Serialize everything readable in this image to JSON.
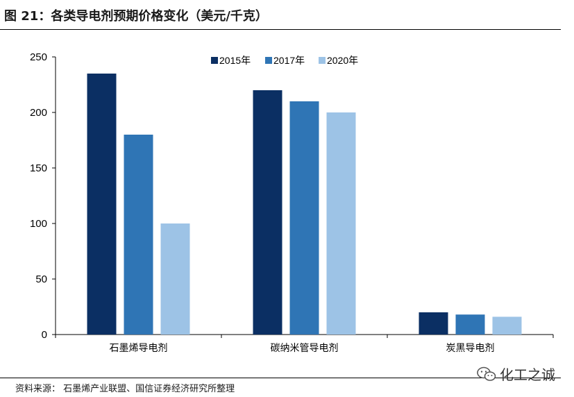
{
  "header": {
    "title": "图 21：各类导电剂预期价格变化（美元/千克）"
  },
  "footer": {
    "source": "资料来源：  石墨烯产业联盟、国信证券经济研究所整理",
    "watermark": "化工之诚"
  },
  "chart_data": {
    "type": "bar",
    "title": "图 21：各类导电剂预期价格变化（美元/千克）",
    "categories": [
      "石墨烯导电剂",
      "碳纳米管导电剂",
      "炭黑导电剂"
    ],
    "series": [
      {
        "name": "2015年",
        "values": [
          235,
          220,
          20
        ],
        "color": "#0b2f63"
      },
      {
        "name": "2017年",
        "values": [
          180,
          210,
          18
        ],
        "color": "#2f75b5"
      },
      {
        "name": "2020年",
        "values": [
          100,
          200,
          16
        ],
        "color": "#9dc3e6"
      }
    ],
    "ylim": [
      0,
      250
    ],
    "yticks": [
      0,
      50,
      100,
      150,
      200,
      250
    ],
    "xlabel": "",
    "ylabel": "",
    "grid": false,
    "legend": "top-center"
  }
}
